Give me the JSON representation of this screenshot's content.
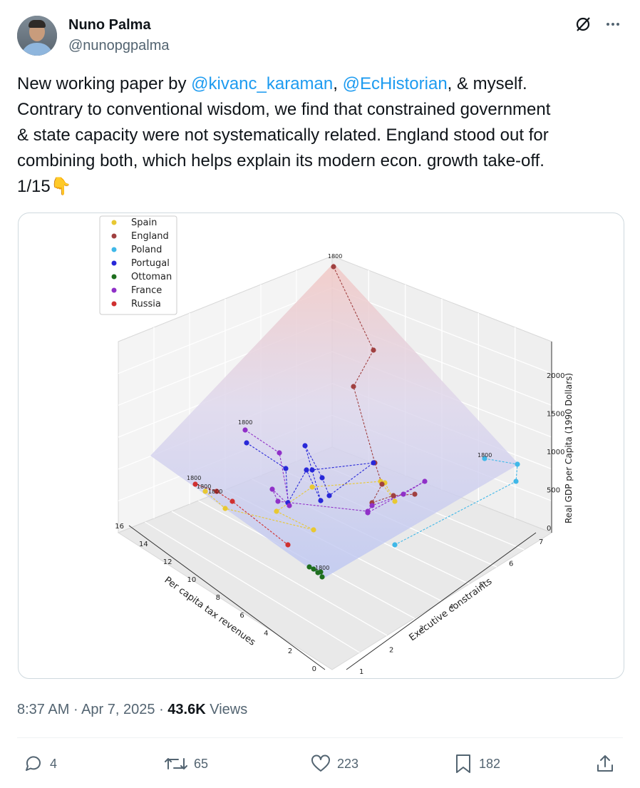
{
  "author": {
    "name": "Nuno Palma",
    "handle": "@nunopgpalma"
  },
  "tweet": {
    "line1_pre": "New working paper by ",
    "mention1": "@kivanc_karaman",
    "sep1": ", ",
    "mention2": "@EcHistorian",
    "line1_post": ", & myself.",
    "line2": "Contrary to conventional wisdom, we find that constrained government",
    "line3": "& state capacity were not systematically related. England stood out for",
    "line4": "combining both, which helps explain its modern econ. growth take-off.",
    "line5": "1/15",
    "emoji": "👇"
  },
  "meta": {
    "time": "8:37 AM",
    "date": "Apr 7, 2025",
    "dot": "·",
    "views_count": "43.6K",
    "views_label": "Views"
  },
  "actions": {
    "replies": "4",
    "reposts": "65",
    "likes": "223",
    "bookmarks": "182"
  },
  "chart_data": {
    "type": "scatter",
    "projection": "3d",
    "xlabel": "Per capita tax revenues",
    "ylabel": "Executive constraints",
    "zlabel": "Real GDP per Capita (1990 Dollars)",
    "x_ticks": [
      "0",
      "2",
      "4",
      "6",
      "8",
      "10",
      "12",
      "14",
      "16"
    ],
    "y_ticks": [
      "1",
      "2",
      "3",
      "4",
      "5",
      "6",
      "7"
    ],
    "z_ticks": [
      "0",
      "500",
      "1000",
      "1500",
      "2000"
    ],
    "legend_position": "top-left",
    "annotation": "1800",
    "series": [
      {
        "name": "Spain",
        "color": "#e8c832"
      },
      {
        "name": "England",
        "color": "#a04040"
      },
      {
        "name": "Poland",
        "color": "#40b8e8"
      },
      {
        "name": "Portugal",
        "color": "#2828d8"
      },
      {
        "name": "Ottoman",
        "color": "#1e6e1e"
      },
      {
        "name": "France",
        "color": "#9030c8"
      },
      {
        "name": "Russia",
        "color": "#d03030"
      }
    ]
  }
}
